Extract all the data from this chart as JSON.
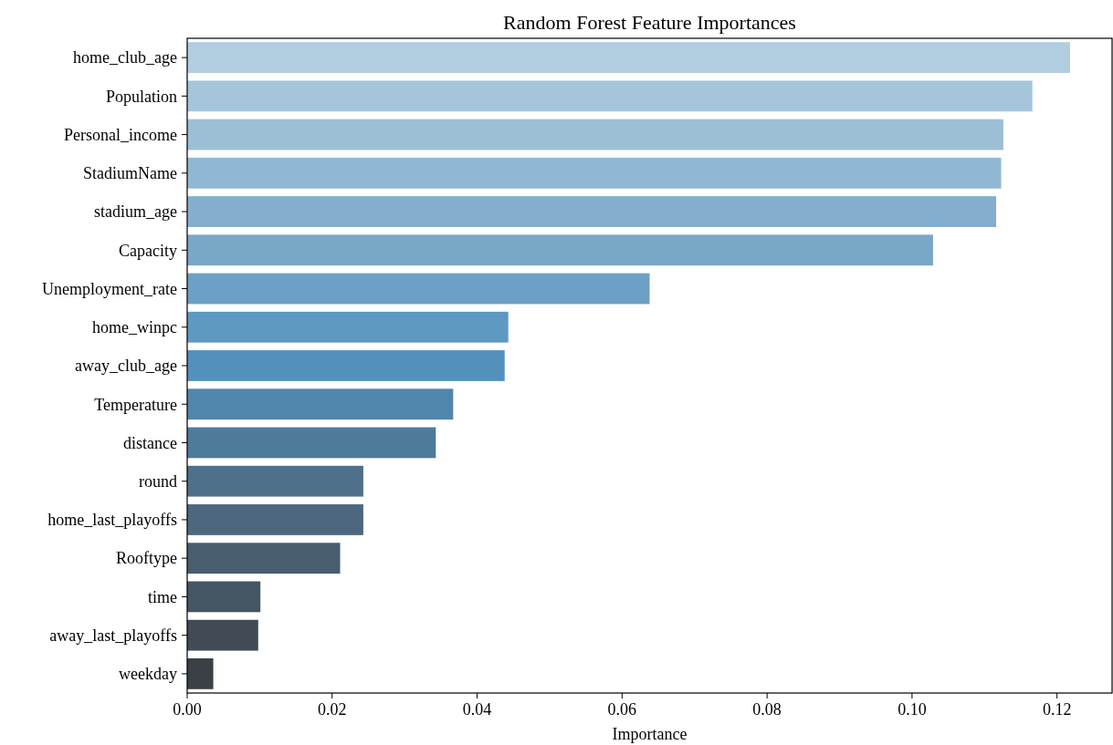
{
  "chart_data": {
    "type": "bar",
    "orientation": "horizontal",
    "title": "Random Forest Feature Importances",
    "xlabel": "Importance",
    "categories": [
      "home_club_age",
      "Population",
      "Personal_income",
      "StadiumName",
      "stadium_age",
      "Capacity",
      "Unemployment_rate",
      "home_winpc",
      "away_club_age",
      "Temperature",
      "distance",
      "round",
      "home_last_playoffs",
      "Rooftype",
      "time",
      "away_last_playoffs",
      "weekday"
    ],
    "values": [
      0.1218,
      0.1166,
      0.1126,
      0.1123,
      0.1116,
      0.1029,
      0.0638,
      0.0443,
      0.0438,
      0.0367,
      0.0343,
      0.0243,
      0.0243,
      0.0211,
      0.0101,
      0.0098,
      0.0036
    ],
    "colors": [
      "#b1cee0",
      "#a4c5da",
      "#9cbfd6",
      "#91b8d2",
      "#84aecd",
      "#79a7c8",
      "#6ca0c5",
      "#5e99c2",
      "#5390bc",
      "#5186ac",
      "#4f7b9b",
      "#4e708b",
      "#4c677e",
      "#485d70",
      "#445663",
      "#404b55",
      "#3b4047"
    ],
    "xlim": [
      0,
      0.1276
    ],
    "xticks": [
      {
        "value": 0,
        "label": "0.00"
      },
      {
        "value": 0.02,
        "label": "0.02"
      },
      {
        "value": 0.04,
        "label": "0.04"
      },
      {
        "value": 0.06,
        "label": "0.06"
      },
      {
        "value": 0.08,
        "label": "0.08"
      },
      {
        "value": 0.1,
        "label": "0.10"
      },
      {
        "value": 0.12,
        "label": "0.12"
      }
    ],
    "grid": false
  }
}
